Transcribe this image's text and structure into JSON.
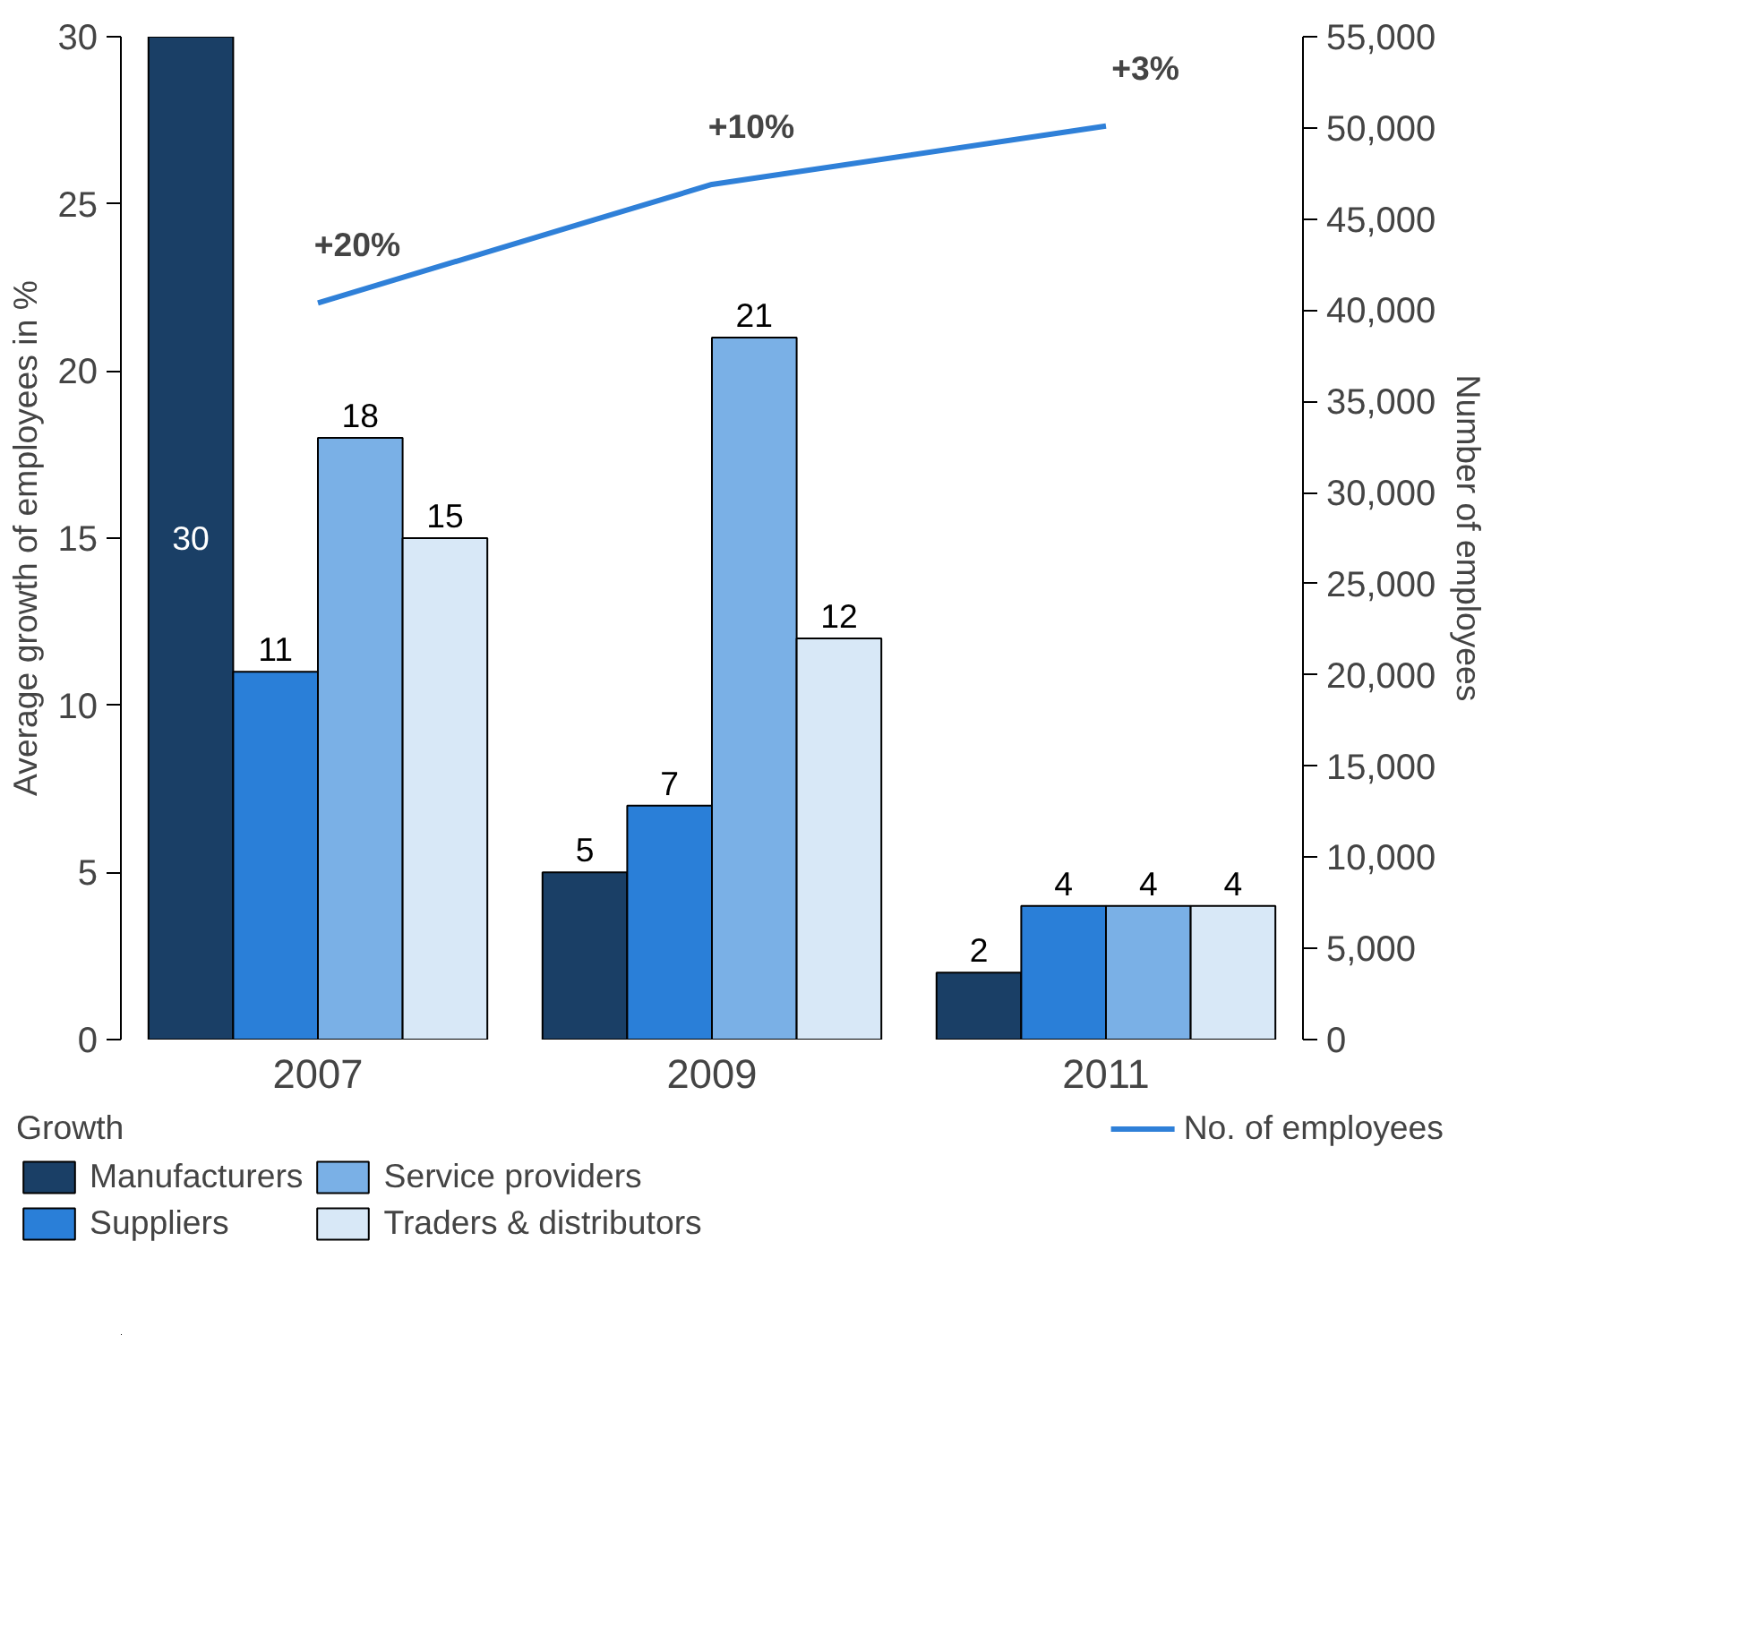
{
  "chart_data": {
    "type": "bar",
    "categories": [
      "2007",
      "2009",
      "2011"
    ],
    "ylabel": "Average growth of employees in %",
    "y2label": "Number of employees",
    "ylim": [
      0,
      30
    ],
    "yticks": [
      0,
      5,
      10,
      15,
      20,
      25,
      30
    ],
    "y2lim": [
      0,
      55000
    ],
    "y2ticks": [
      {
        "value": 0,
        "label": "0"
      },
      {
        "value": 5000,
        "label": "5,000"
      },
      {
        "value": 10000,
        "label": "10,000"
      },
      {
        "value": 15000,
        "label": "15,000"
      },
      {
        "value": 20000,
        "label": "20,000"
      },
      {
        "value": 25000,
        "label": "25,000"
      },
      {
        "value": 30000,
        "label": "30,000"
      },
      {
        "value": 35000,
        "label": "35,000"
      },
      {
        "value": 40000,
        "label": "40,000"
      },
      {
        "value": 45000,
        "label": "45,000"
      },
      {
        "value": 50000,
        "label": "50,000"
      },
      {
        "value": 55000,
        "label": "55,000"
      }
    ],
    "legend_title": "Growth",
    "legend": "bottom",
    "series": [
      {
        "name": "Manufacturers",
        "color": "#1a3f66",
        "values": [
          30,
          5,
          2
        ],
        "value_labels": [
          "30",
          "5",
          "2"
        ]
      },
      {
        "name": "Suppliers",
        "color": "#2a7fd8",
        "values": [
          11,
          7,
          4
        ],
        "value_labels": [
          "11",
          "7",
          "4"
        ]
      },
      {
        "name": "Service providers",
        "color": "#7ab0e6",
        "values": [
          18,
          21,
          4
        ],
        "value_labels": [
          "18",
          "21",
          "4"
        ]
      },
      {
        "name": "Traders & distributors",
        "color": "#d8e8f7",
        "values": [
          15,
          12,
          4
        ],
        "value_labels": [
          "15",
          "12",
          "4"
        ]
      },
      {
        "name": "No. of employees",
        "color": "#2f80d8",
        "type": "line",
        "axis": "y2",
        "values": [
          40400,
          46900,
          50100
        ]
      }
    ],
    "annotations": [
      "+20%",
      "+10%",
      "+3%"
    ]
  }
}
